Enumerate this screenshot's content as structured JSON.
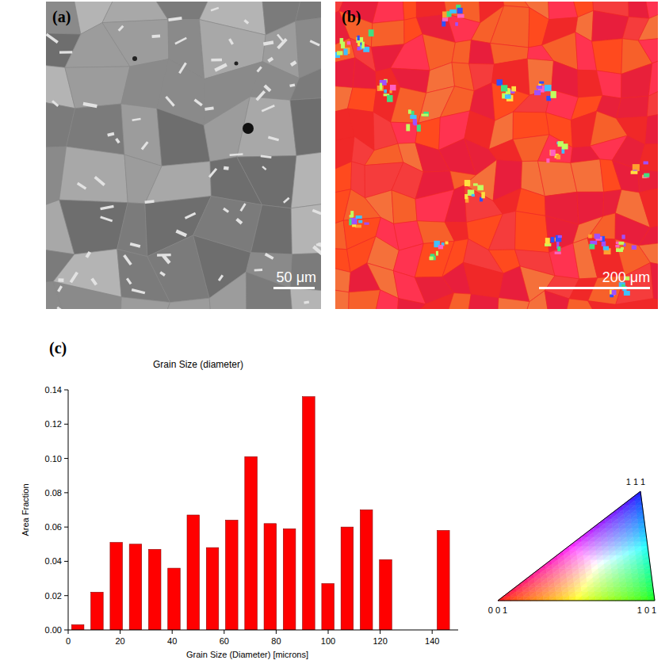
{
  "panels": {
    "a": {
      "label": "(a)",
      "scale_bar": "50 μm"
    },
    "b": {
      "label": "(b)",
      "scale_bar": "200 μm"
    },
    "c": {
      "label": "(c)"
    }
  },
  "chart_data": {
    "type": "histogram",
    "title": "Grain Size (diameter)",
    "x_label": "Grain Size (Diameter) [microns]",
    "y_label": "Area Fraction",
    "bins": [
      0,
      7.4,
      14.8,
      22.2,
      29.6,
      37,
      44.4,
      51.8,
      59.2,
      66.6,
      74,
      81.4,
      88.8,
      96.2,
      103.6,
      111,
      118.4,
      125.8,
      133.2,
      140.6,
      148
    ],
    "values": [
      0.003,
      0.022,
      0.051,
      0.05,
      0.047,
      0.036,
      0.067,
      0.048,
      0.064,
      0.101,
      0.062,
      0.059,
      0.136,
      0.027,
      0.06,
      0.07,
      0.041,
      0,
      0,
      0.058
    ],
    "color": "#ff0000",
    "xlim": [
      0,
      150
    ],
    "xticks": [
      0,
      20,
      40,
      60,
      80,
      100,
      120,
      140
    ],
    "ylim": [
      0,
      0.14
    ],
    "yticks": [
      {
        "value": 0,
        "label": "0.00"
      },
      {
        "value": 0.02,
        "label": "0.02"
      },
      {
        "value": 0.04,
        "label": "0.04"
      },
      {
        "value": 0.06,
        "label": "0.06"
      },
      {
        "value": 0.08,
        "label": "0.08"
      },
      {
        "value": 0.1,
        "label": "0.10"
      },
      {
        "value": 0.12,
        "label": "0.12"
      },
      {
        "value": 0.14,
        "label": "0.14"
      }
    ],
    "grid": false
  },
  "ipf_legend": {
    "corners": [
      "0 0 1",
      "1 0 1",
      "1 1 1"
    ]
  }
}
